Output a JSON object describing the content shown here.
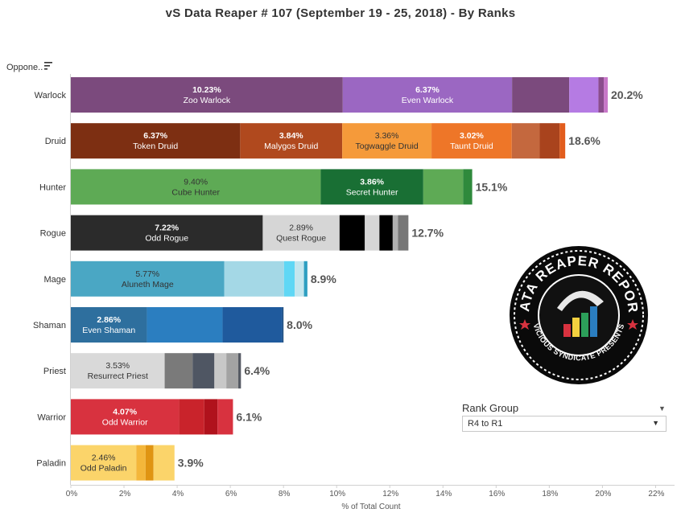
{
  "title": "vS Data Reaper #  107 (September 19 - 25, 2018) - By Ranks",
  "sort_control": {
    "label": "Oppone..",
    "icon": "sort-icon"
  },
  "filter": {
    "title": "Rank Group",
    "selected": "R4 to R1"
  },
  "logo": {
    "text_top": "DATA REAPER REPORT",
    "text_bottom": "VICIOUS SYNDICATE PRESENTS"
  },
  "chart_data": {
    "type": "bar",
    "orientation": "horizontal",
    "stacked": true,
    "xlabel": "% of Total Count",
    "xlim": [
      0,
      22
    ],
    "xticks": [
      "0%",
      "2%",
      "4%",
      "6%",
      "8%",
      "10%",
      "12%",
      "14%",
      "16%",
      "18%",
      "20%",
      "22%"
    ],
    "grid": false,
    "categories": [
      "Warlock",
      "Druid",
      "Hunter",
      "Rogue",
      "Mage",
      "Shaman",
      "Priest",
      "Warrior",
      "Paladin"
    ],
    "totals": [
      "20.2%",
      "18.6%",
      "15.1%",
      "12.7%",
      "8.9%",
      "8.0%",
      "6.4%",
      "6.1%",
      "3.9%"
    ],
    "total_values": [
      20.2,
      18.6,
      15.1,
      12.7,
      8.9,
      8.0,
      6.4,
      6.1,
      3.9
    ],
    "rows": [
      {
        "category": "Warlock",
        "segments": [
          {
            "value": 10.23,
            "pct": "10.23%",
            "name": "Zoo Warlock",
            "color": "#7b4a7d",
            "label_color": "#ffffff"
          },
          {
            "value": 6.37,
            "pct": "6.37%",
            "name": "Even Warlock",
            "color": "#9b67c2",
            "label_color": "#ffffff"
          },
          {
            "value": 2.15,
            "color": "#7b4a7d"
          },
          {
            "value": 1.1,
            "color": "#b57be3"
          },
          {
            "value": 0.2,
            "color": "#8b4d8d"
          },
          {
            "value": 0.15,
            "color": "#c877c8"
          }
        ]
      },
      {
        "category": "Druid",
        "segments": [
          {
            "value": 6.37,
            "pct": "6.37%",
            "name": "Token Druid",
            "color": "#7d2f12",
            "label_color": "#ffffff"
          },
          {
            "value": 3.84,
            "pct": "3.84%",
            "name": "Malygos Druid",
            "color": "#b0491e",
            "label_color": "#ffffff"
          },
          {
            "value": 3.36,
            "pct": "3.36%",
            "name": "Togwaggle Druid",
            "color": "#f59a3a",
            "label_color": "#333333"
          },
          {
            "value": 3.02,
            "pct": "3.02%",
            "name": "Taunt Druid",
            "color": "#ee7628",
            "label_color": "#ffffff"
          },
          {
            "value": 1.05,
            "color": "#c4683e"
          },
          {
            "value": 0.75,
            "color": "#a9431d"
          },
          {
            "value": 0.21,
            "color": "#e25d1d"
          }
        ]
      },
      {
        "category": "Hunter",
        "segments": [
          {
            "value": 9.4,
            "pct": "9.40%",
            "name": "Cube Hunter",
            "color": "#5eaa55",
            "label_color": "#333333"
          },
          {
            "value": 3.86,
            "pct": "3.86%",
            "name": "Secret Hunter",
            "color": "#196f34",
            "label_color": "#ffffff"
          },
          {
            "value": 1.5,
            "color": "#5eaa55"
          },
          {
            "value": 0.34,
            "color": "#2f8a3c"
          }
        ]
      },
      {
        "category": "Rogue",
        "segments": [
          {
            "value": 7.22,
            "pct": "7.22%",
            "name": "Odd Rogue",
            "color": "#2b2b2b",
            "label_color": "#ffffff"
          },
          {
            "value": 2.89,
            "pct": "2.89%",
            "name": "Quest Rogue",
            "color": "#d6d6d6",
            "label_color": "#333333"
          },
          {
            "value": 0.95,
            "color": "#000000"
          },
          {
            "value": 0.55,
            "color": "#d6d6d6"
          },
          {
            "value": 0.5,
            "color": "#000000"
          },
          {
            "value": 0.2,
            "color": "#b0b0b0"
          },
          {
            "value": 0.39,
            "color": "#777777"
          }
        ]
      },
      {
        "category": "Mage",
        "segments": [
          {
            "value": 5.77,
            "pct": "5.77%",
            "name": "Aluneth Mage",
            "color": "#4aa7c4",
            "label_color": "#333333"
          },
          {
            "value": 2.25,
            "color": "#a4d8e6"
          },
          {
            "value": 0.4,
            "color": "#5fd7f5"
          },
          {
            "value": 0.35,
            "color": "#c4e6ee"
          },
          {
            "value": 0.13,
            "color": "#2d9fc1"
          }
        ]
      },
      {
        "category": "Shaman",
        "segments": [
          {
            "value": 2.86,
            "pct": "2.86%",
            "name": "Even Shaman",
            "color": "#2e6f9e",
            "label_color": "#ffffff"
          },
          {
            "value": 2.85,
            "color": "#2b7ec0"
          },
          {
            "value": 2.25,
            "color": "#1f5a9d"
          },
          {
            "value": 0.04,
            "color": "#134477"
          }
        ]
      },
      {
        "category": "Priest",
        "segments": [
          {
            "value": 3.53,
            "pct": "3.53%",
            "name": "Resurrect Priest",
            "color": "#d9d9d9",
            "label_color": "#333333"
          },
          {
            "value": 1.05,
            "color": "#7a7a7a"
          },
          {
            "value": 0.82,
            "color": "#4f5663"
          },
          {
            "value": 0.45,
            "color": "#c8c8c8"
          },
          {
            "value": 0.45,
            "color": "#a3a3a3"
          },
          {
            "value": 0.1,
            "color": "#555a63"
          }
        ]
      },
      {
        "category": "Warrior",
        "segments": [
          {
            "value": 4.07,
            "pct": "4.07%",
            "name": "Odd Warrior",
            "color": "#d8323f",
            "label_color": "#ffffff"
          },
          {
            "value": 0.95,
            "color": "#c9232b"
          },
          {
            "value": 0.5,
            "color": "#b0121c"
          },
          {
            "value": 0.58,
            "color": "#d8323f"
          }
        ]
      },
      {
        "category": "Paladin",
        "segments": [
          {
            "value": 2.46,
            "pct": "2.46%",
            "name": "Odd Paladin",
            "color": "#fbd46a",
            "label_color": "#333333"
          },
          {
            "value": 0.35,
            "color": "#f4b63a"
          },
          {
            "value": 0.3,
            "color": "#e09412"
          },
          {
            "value": 0.79,
            "color": "#fbd46a"
          }
        ]
      }
    ]
  }
}
